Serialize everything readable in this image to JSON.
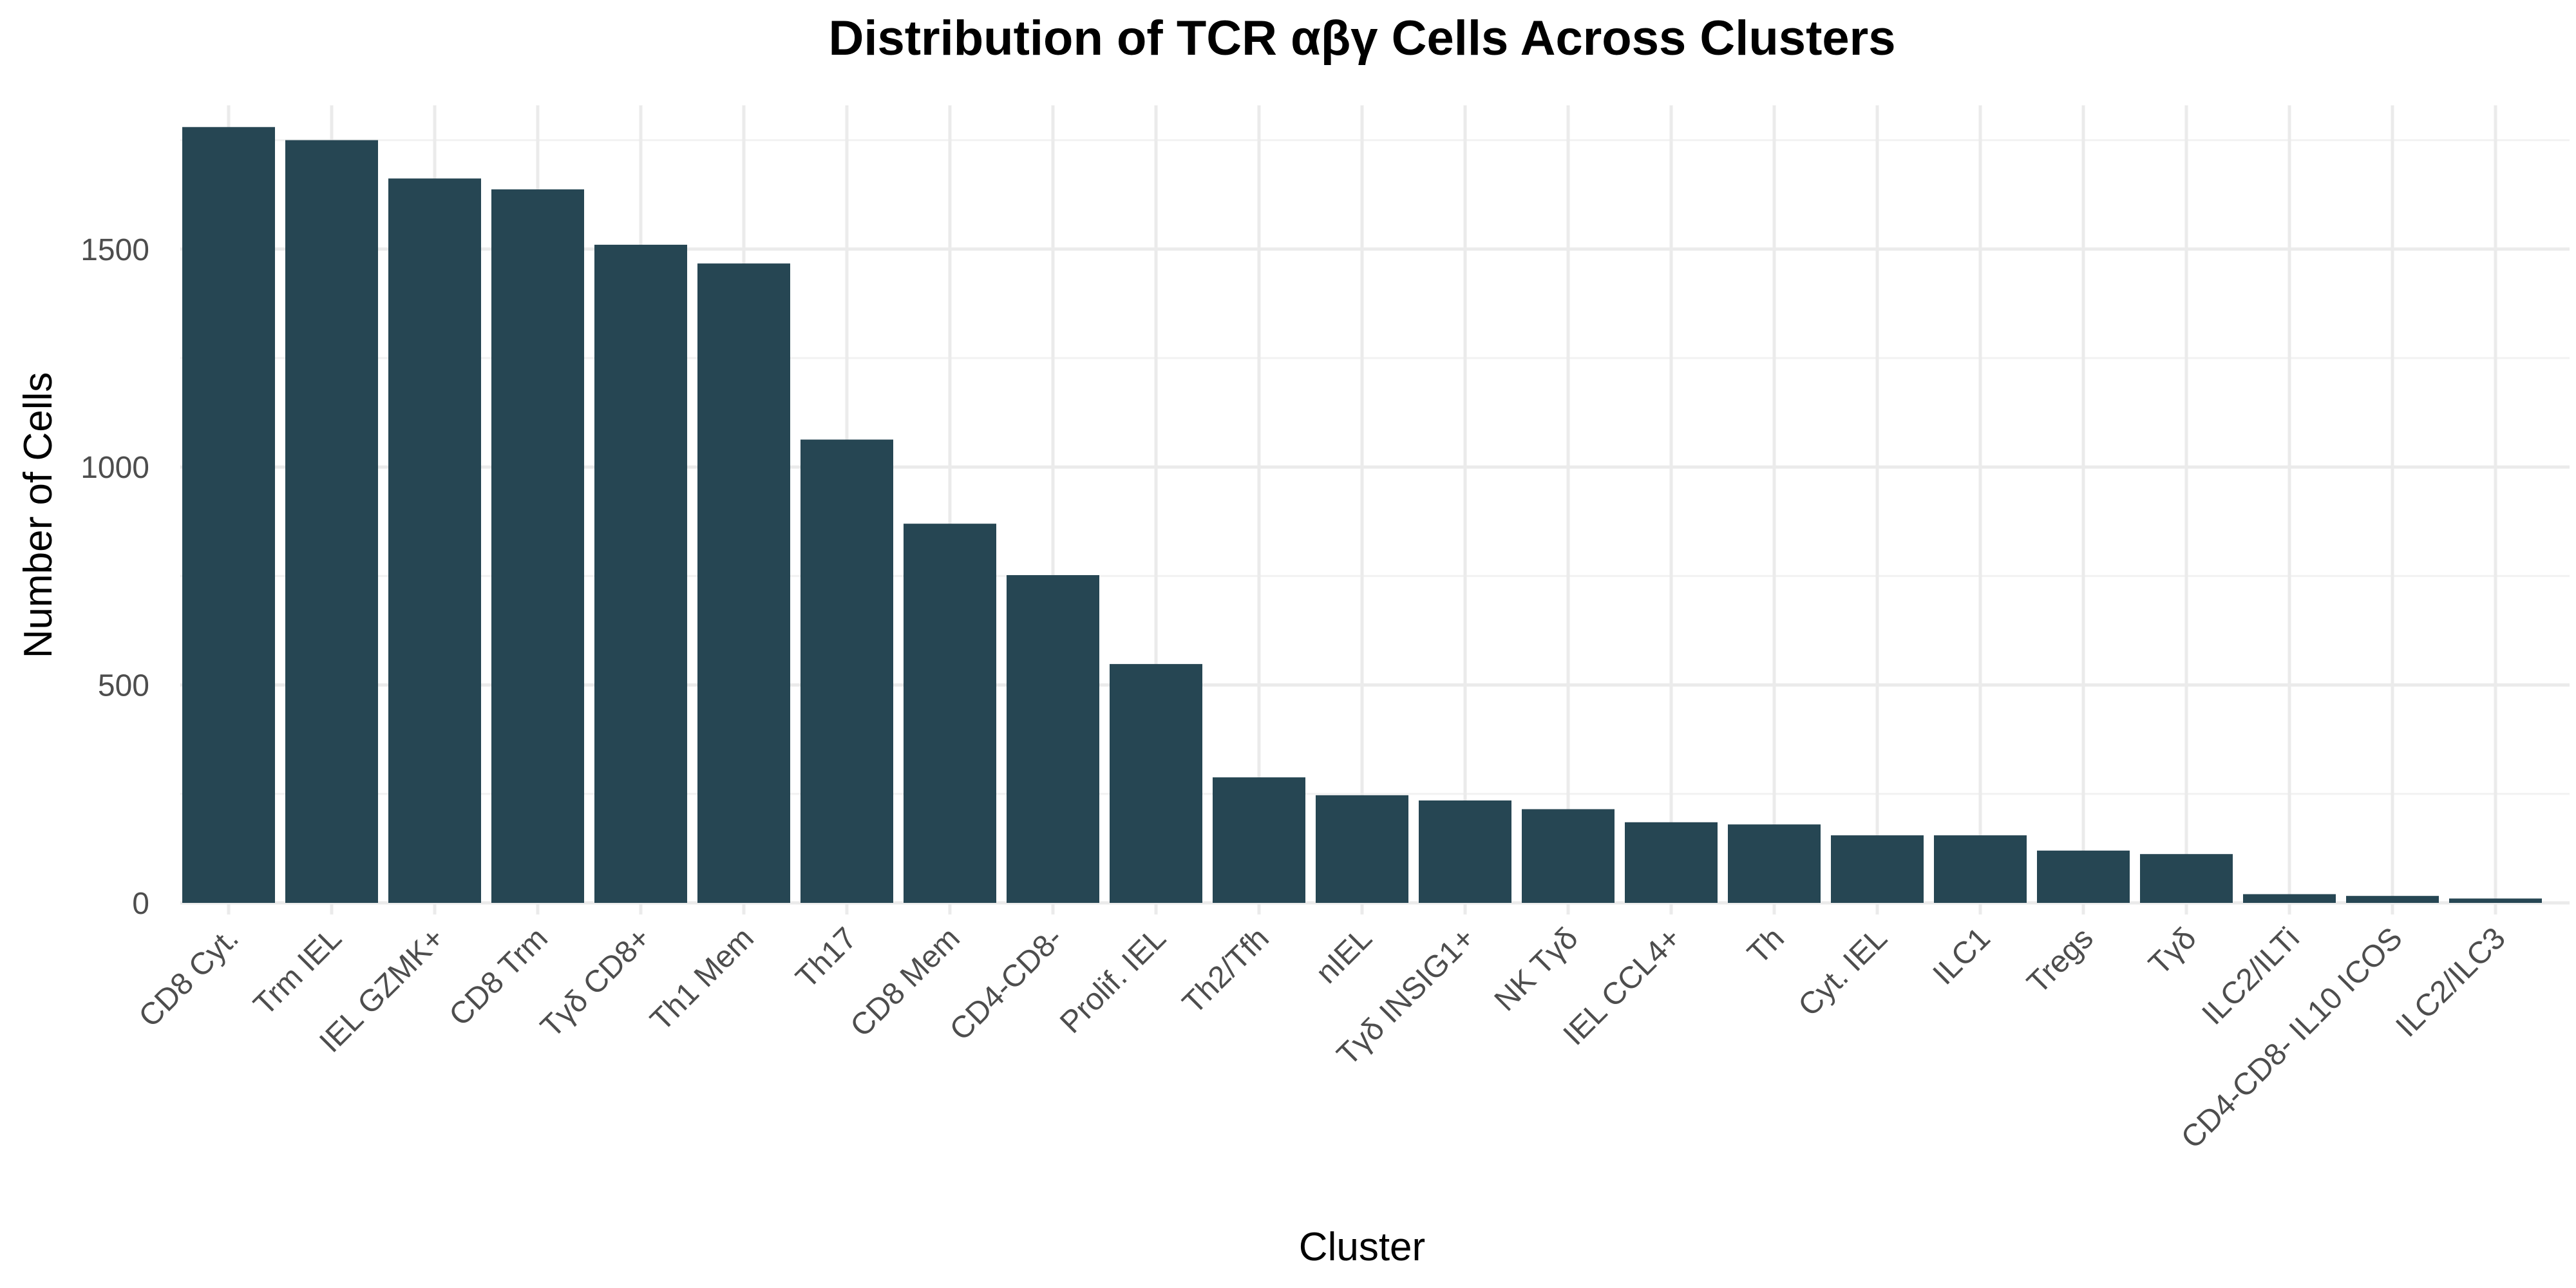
{
  "chart_data": {
    "type": "bar",
    "title": "Distribution of TCR αβγ Cells Across Clusters",
    "xlabel": "Cluster",
    "ylabel": "Number of Cells",
    "categories": [
      "CD8 Cyt.",
      "Trm IEL",
      "IEL GZMK+",
      "CD8 Trm",
      "Tγδ CD8+",
      "Th1 Mem",
      "Th17",
      "CD8 Mem",
      "CD4-CD8-",
      "Prolif. IEL",
      "Th2/Tfh",
      "nIEL",
      "Tγδ INSIG1+",
      "NK Tγδ",
      "IEL CCL4+",
      "Th",
      "Cyt. IEL",
      "ILC1",
      "Tregs",
      "Tγδ",
      "ILC2/ILTi",
      "CD4-CD8- IL10 ICOS",
      "ILC2/ILC3"
    ],
    "values": [
      1780,
      1750,
      1662,
      1637,
      1510,
      1467,
      1063,
      870,
      752,
      548,
      288,
      247,
      235,
      215,
      185,
      180,
      155,
      155,
      120,
      112,
      20,
      16,
      10
    ],
    "ylim": [
      0,
      1830
    ],
    "yticks": [
      0,
      500,
      1000,
      1500
    ],
    "grid": true,
    "legend": "none",
    "bar_color": "#264653"
  }
}
